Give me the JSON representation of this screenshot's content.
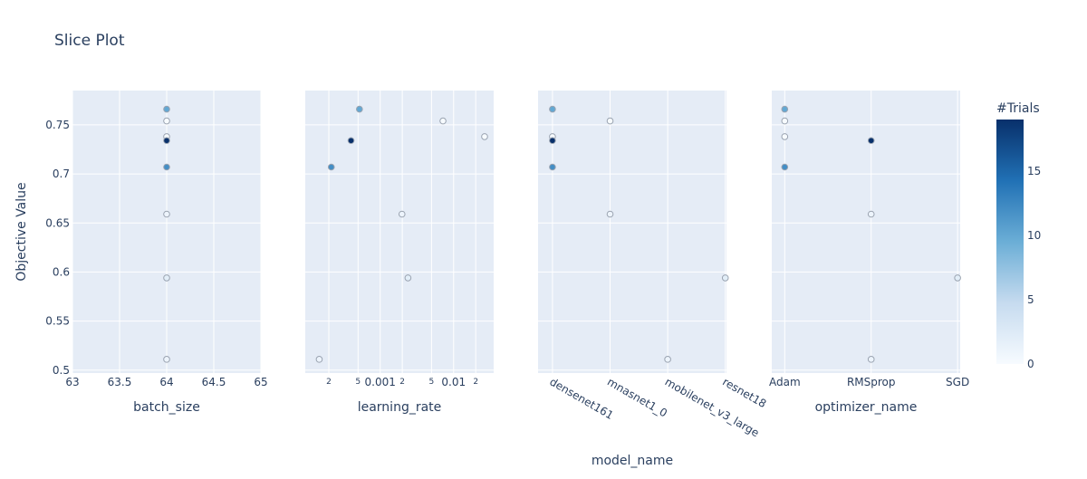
{
  "title": "Slice Plot",
  "ylabel": "Objective Value",
  "colorbar": {
    "title": "#Trials",
    "ticks": [
      "0",
      "5",
      "10",
      "15"
    ],
    "tick_values": [
      0,
      5,
      10,
      15
    ],
    "range": [
      0,
      19
    ],
    "colorscale": [
      "#f7fbff",
      "#c6dbef",
      "#6baed6",
      "#2171b5",
      "#08306b"
    ]
  },
  "y_axis": {
    "ticks": [
      "0.5",
      "0.55",
      "0.6",
      "0.65",
      "0.7",
      "0.75"
    ]
  },
  "chart_data": [
    {
      "type": "scatter",
      "xlabel": "batch_size",
      "x_scale": "linear",
      "x_ticks": [
        "63",
        "63.5",
        "64",
        "64.5",
        "65"
      ],
      "xlim": [
        63,
        65
      ],
      "ylim": [
        0.497,
        0.785
      ],
      "points": [
        {
          "x": 64,
          "y": 0.766,
          "trial": 10
        },
        {
          "x": 64,
          "y": 0.754,
          "trial": 0
        },
        {
          "x": 64,
          "y": 0.738,
          "trial": 0
        },
        {
          "x": 64,
          "y": 0.734,
          "trial": 19
        },
        {
          "x": 64,
          "y": 0.707,
          "trial": 12
        },
        {
          "x": 64,
          "y": 0.659,
          "trial": 1
        },
        {
          "x": 64,
          "y": 0.594,
          "trial": 2
        },
        {
          "x": 64,
          "y": 0.511,
          "trial": 1
        }
      ]
    },
    {
      "type": "scatter",
      "xlabel": "learning_rate",
      "x_scale": "log",
      "x_ticks": [
        {
          "label": "2",
          "value": 0.0002,
          "small": true
        },
        {
          "label": "5",
          "value": 0.0005,
          "small": true
        },
        {
          "label": "0.001",
          "value": 0.001,
          "small": false
        },
        {
          "label": "2",
          "value": 0.002,
          "small": true
        },
        {
          "label": "5",
          "value": 0.005,
          "small": true
        },
        {
          "label": "0.01",
          "value": 0.01,
          "small": false
        },
        {
          "label": "2",
          "value": 0.02,
          "small": true
        }
      ],
      "xlim": [
        9.55e-05,
        0.0351
      ],
      "ylim": [
        0.497,
        0.785
      ],
      "points": [
        {
          "x": 0.000522,
          "y": 0.766,
          "trial": 10
        },
        {
          "x": 0.00716,
          "y": 0.754,
          "trial": 0
        },
        {
          "x": 0.0264,
          "y": 0.738,
          "trial": 0
        },
        {
          "x": 0.000401,
          "y": 0.734,
          "trial": 19
        },
        {
          "x": 0.000216,
          "y": 0.707,
          "trial": 12
        },
        {
          "x": 0.00198,
          "y": 0.659,
          "trial": 1
        },
        {
          "x": 0.00239,
          "y": 0.594,
          "trial": 2
        },
        {
          "x": 0.000148,
          "y": 0.511,
          "trial": 1
        }
      ]
    },
    {
      "type": "scatter",
      "xlabel": "model_name",
      "x_scale": "category",
      "x_ticks": [
        "densenet161",
        "mnasnet1_0",
        "mobilenet_v3_large",
        "resnet18"
      ],
      "xlim": [
        -0.25,
        3.02
      ],
      "ylim": [
        0.497,
        0.785
      ],
      "points": [
        {
          "x": "densenet161",
          "y": 0.766,
          "trial": 10
        },
        {
          "x": "mnasnet1_0",
          "y": 0.754,
          "trial": 0
        },
        {
          "x": "densenet161",
          "y": 0.738,
          "trial": 0
        },
        {
          "x": "densenet161",
          "y": 0.734,
          "trial": 19
        },
        {
          "x": "densenet161",
          "y": 0.707,
          "trial": 12
        },
        {
          "x": "mnasnet1_0",
          "y": 0.659,
          "trial": 1
        },
        {
          "x": "resnet18",
          "y": 0.594,
          "trial": 2
        },
        {
          "x": "mobilenet_v3_large",
          "y": 0.511,
          "trial": 1
        }
      ]
    },
    {
      "type": "scatter",
      "xlabel": "optimizer_name",
      "x_scale": "category",
      "x_ticks": [
        "Adam",
        "RMSprop",
        "SGD"
      ],
      "xlim": [
        -0.15,
        2.03
      ],
      "ylim": [
        0.497,
        0.785
      ],
      "points": [
        {
          "x": "Adam",
          "y": 0.766,
          "trial": 10
        },
        {
          "x": "Adam",
          "y": 0.754,
          "trial": 0
        },
        {
          "x": "Adam",
          "y": 0.738,
          "trial": 0
        },
        {
          "x": "RMSprop",
          "y": 0.734,
          "trial": 19
        },
        {
          "x": "Adam",
          "y": 0.707,
          "trial": 12
        },
        {
          "x": "RMSprop",
          "y": 0.659,
          "trial": 1
        },
        {
          "x": "SGD",
          "y": 0.594,
          "trial": 2
        },
        {
          "x": "RMSprop",
          "y": 0.511,
          "trial": 1
        }
      ]
    }
  ]
}
